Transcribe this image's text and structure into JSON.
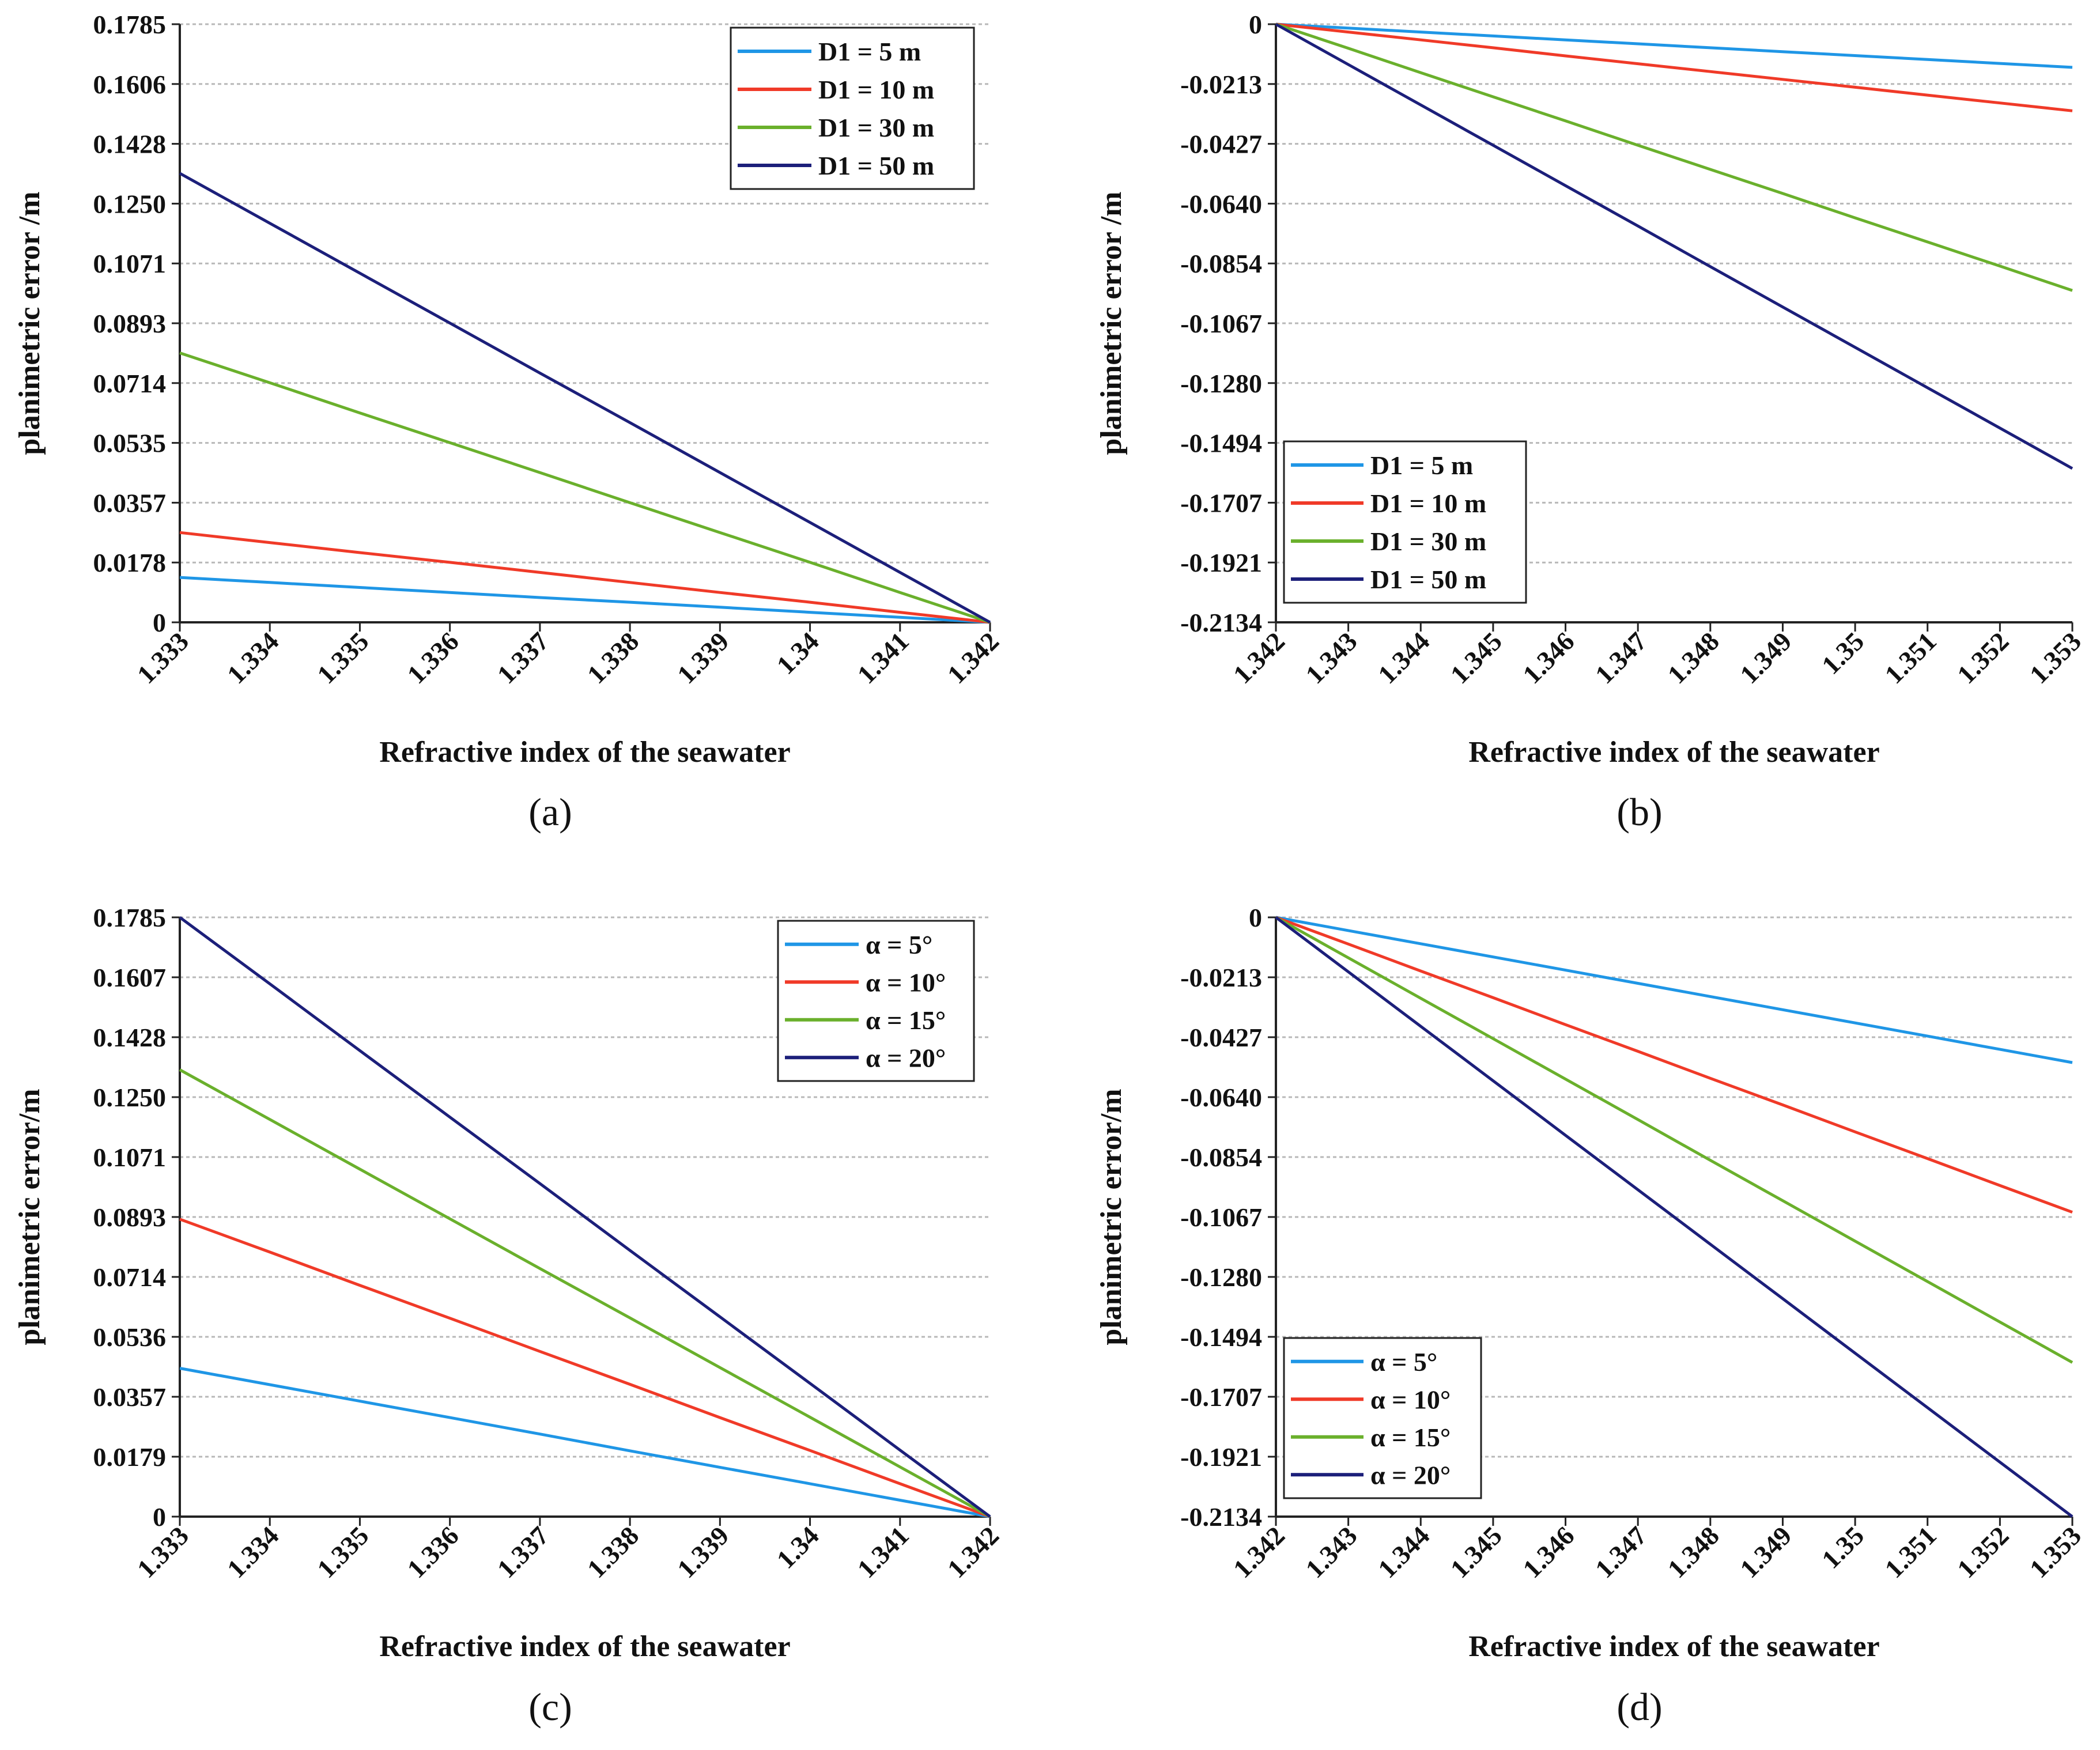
{
  "chart_data": [
    {
      "type": "line",
      "panel": "(a)",
      "caption": "(a)",
      "xlabel": "Refractive index of the seawater",
      "ylabel": "planimetric error /m",
      "x": [
        1.333,
        1.334,
        1.335,
        1.336,
        1.337,
        1.338,
        1.339,
        1.34,
        1.341,
        1.342
      ],
      "x_tick_labels": [
        "1.333",
        "1.334",
        "1.335",
        "1.336",
        "1.337",
        "1.338",
        "1.339",
        "1.34",
        "1.341",
        "1.342"
      ],
      "ylim": [
        0,
        0.1785
      ],
      "y_tick_labels": [
        "0",
        "0.0178",
        "0.0357",
        "0.0535",
        "0.0714",
        "0.0893",
        "0.1071",
        "0.1250",
        "0.1428",
        "0.1606",
        "0.1785"
      ],
      "grid": true,
      "legend_position": "top-right",
      "series": [
        {
          "name": "D1 = 5 m",
          "color": "#1f96e6",
          "values": [
            0.0134,
            0.0119,
            0.0104,
            0.0089,
            0.0074,
            0.006,
            0.0045,
            0.003,
            0.0015,
            0
          ]
        },
        {
          "name": "D1 = 10 m",
          "color": "#f03a28",
          "values": [
            0.0268,
            0.0238,
            0.0208,
            0.0179,
            0.0149,
            0.0119,
            0.0089,
            0.006,
            0.003,
            0
          ]
        },
        {
          "name": "D1 = 30 m",
          "color": "#6ab02c",
          "values": [
            0.0804,
            0.0715,
            0.0625,
            0.0536,
            0.0447,
            0.0357,
            0.0268,
            0.0179,
            0.0089,
            0
          ]
        },
        {
          "name": "D1 = 50 m",
          "color": "#1c1f7a",
          "values": [
            0.134,
            0.1191,
            0.1042,
            0.0893,
            0.0744,
            0.0596,
            0.0447,
            0.0298,
            0.0149,
            0
          ]
        }
      ]
    },
    {
      "type": "line",
      "panel": "(b)",
      "caption": "(b)",
      "xlabel": "Refractive index of the seawater",
      "ylabel": "planimetric error /m",
      "x": [
        1.342,
        1.343,
        1.344,
        1.345,
        1.346,
        1.347,
        1.348,
        1.349,
        1.35,
        1.351,
        1.352,
        1.353
      ],
      "x_tick_labels": [
        "1.342",
        "1.343",
        "1.344",
        "1.345",
        "1.346",
        "1.347",
        "1.348",
        "1.349",
        "1.35",
        "1.351",
        "1.352",
        "1.353"
      ],
      "ylim": [
        -0.2134,
        0
      ],
      "y_tick_labels": [
        "-0.2134",
        "-0.1921",
        "-0.1707",
        "-0.1494",
        "-0.1280",
        "-0.1067",
        "-0.0854",
        "-0.0640",
        "-0.0427",
        "-0.0213",
        "0"
      ],
      "grid": true,
      "legend_position": "bottom-left",
      "series": [
        {
          "name": "D1 = 5 m",
          "color": "#1f96e6",
          "values": [
            0,
            -0.0014,
            -0.0028,
            -0.0042,
            -0.0056,
            -0.007,
            -0.0084,
            -0.0098,
            -0.0112,
            -0.0126,
            -0.014,
            -0.0154
          ]
        },
        {
          "name": "D1 = 10 m",
          "color": "#f03a28",
          "values": [
            0,
            -0.0028,
            -0.0056,
            -0.0084,
            -0.0113,
            -0.0141,
            -0.0169,
            -0.0197,
            -0.0225,
            -0.0253,
            -0.0281,
            -0.0309
          ]
        },
        {
          "name": "D1 = 30 m",
          "color": "#6ab02c",
          "values": [
            0,
            -0.0086,
            -0.0173,
            -0.0259,
            -0.0345,
            -0.0432,
            -0.0518,
            -0.0604,
            -0.0691,
            -0.0777,
            -0.0863,
            -0.095
          ]
        },
        {
          "name": "D1 = 50 m",
          "color": "#1c1f7a",
          "values": [
            0,
            -0.0144,
            -0.0288,
            -0.0432,
            -0.0576,
            -0.072,
            -0.0865,
            -0.1009,
            -0.1153,
            -0.1297,
            -0.1441,
            -0.1585
          ]
        }
      ]
    },
    {
      "type": "line",
      "panel": "(c)",
      "caption": "(c)",
      "xlabel": "Refractive index of the seawater",
      "ylabel": "planimetric error/m",
      "x": [
        1.333,
        1.334,
        1.335,
        1.336,
        1.337,
        1.338,
        1.339,
        1.34,
        1.341,
        1.342
      ],
      "x_tick_labels": [
        "1.333",
        "1.334",
        "1.335",
        "1.336",
        "1.337",
        "1.338",
        "1.339",
        "1.34",
        "1.341",
        "1.342"
      ],
      "ylim": [
        0,
        0.1785
      ],
      "y_tick_labels": [
        "0",
        "0.0179",
        "0.0357",
        "0.0536",
        "0.0714",
        "0.0893",
        "0.1071",
        "0.1250",
        "0.1428",
        "0.1607",
        "0.1785"
      ],
      "grid": true,
      "legend_position": "top-right",
      "series": [
        {
          "name": "α = 5°",
          "color": "#1f96e6",
          "values": [
            0.0442,
            0.0393,
            0.0344,
            0.0295,
            0.0246,
            0.0196,
            0.0147,
            0.0098,
            0.0049,
            0
          ]
        },
        {
          "name": "α = 10°",
          "color": "#f03a28",
          "values": [
            0.0886,
            0.0788,
            0.0689,
            0.0591,
            0.0492,
            0.0394,
            0.0295,
            0.0197,
            0.0098,
            0
          ]
        },
        {
          "name": "α = 15°",
          "color": "#6ab02c",
          "values": [
            0.1331,
            0.1183,
            0.1035,
            0.0887,
            0.0739,
            0.0592,
            0.0444,
            0.0296,
            0.0148,
            0
          ]
        },
        {
          "name": "α = 20°",
          "color": "#1c1f7a",
          "values": [
            0.1785,
            0.1587,
            0.1388,
            0.119,
            0.0992,
            0.0793,
            0.0595,
            0.0397,
            0.0198,
            0
          ]
        }
      ]
    },
    {
      "type": "line",
      "panel": "(d)",
      "caption": "(d)",
      "xlabel": "Refractive index of the seawater",
      "ylabel": "planimetric error/m",
      "x": [
        1.342,
        1.343,
        1.344,
        1.345,
        1.346,
        1.347,
        1.348,
        1.349,
        1.35,
        1.351,
        1.352,
        1.353
      ],
      "x_tick_labels": [
        "1.342",
        "1.343",
        "1.344",
        "1.345",
        "1.346",
        "1.347",
        "1.348",
        "1.349",
        "1.35",
        "1.351",
        "1.352",
        "1.353"
      ],
      "ylim": [
        -0.2134,
        0
      ],
      "y_tick_labels": [
        "-0.2134",
        "-0.1921",
        "-0.1707",
        "-0.1494",
        "-0.1280",
        "-0.1067",
        "-0.0854",
        "-0.0640",
        "-0.0427",
        "-0.0213",
        "0"
      ],
      "grid": true,
      "legend_position": "bottom-left",
      "series": [
        {
          "name": "α = 5°",
          "color": "#1f96e6",
          "values": [
            0,
            -0.0047,
            -0.0094,
            -0.0141,
            -0.0188,
            -0.0235,
            -0.0282,
            -0.0329,
            -0.0376,
            -0.0423,
            -0.047,
            -0.0517
          ]
        },
        {
          "name": "α = 10°",
          "color": "#f03a28",
          "values": [
            0,
            -0.0095,
            -0.0191,
            -0.0286,
            -0.0382,
            -0.0477,
            -0.0573,
            -0.0668,
            -0.0764,
            -0.0859,
            -0.0955,
            -0.105
          ]
        },
        {
          "name": "α = 15°",
          "color": "#6ab02c",
          "values": [
            0,
            -0.0144,
            -0.0288,
            -0.0432,
            -0.0576,
            -0.072,
            -0.0865,
            -0.1009,
            -0.1153,
            -0.1297,
            -0.1441,
            -0.1585
          ]
        },
        {
          "name": "α = 20°",
          "color": "#1c1f7a",
          "values": [
            0,
            -0.0194,
            -0.0388,
            -0.0582,
            -0.0776,
            -0.097,
            -0.1164,
            -0.1358,
            -0.1552,
            -0.1746,
            -0.194,
            -0.2134
          ]
        }
      ]
    }
  ]
}
